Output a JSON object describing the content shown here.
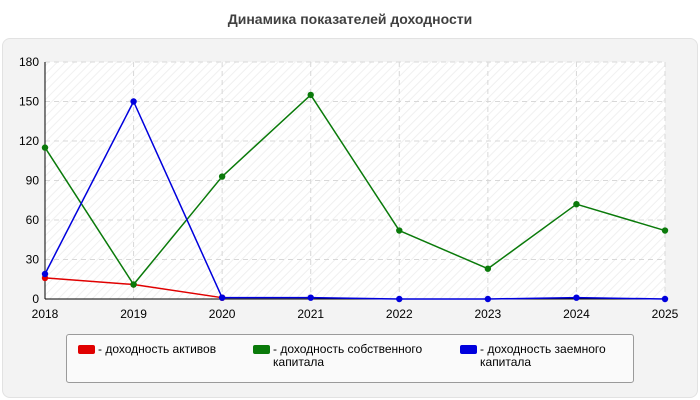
{
  "title": "Динамика показателей доходности",
  "chart_data": {
    "type": "line",
    "title": "Динамика показателей доходности",
    "x": [
      2018,
      2019,
      2020,
      2021,
      2022,
      2023,
      2024,
      2025
    ],
    "ylim": [
      0,
      180
    ],
    "yticks": [
      0,
      30,
      60,
      90,
      120,
      150,
      180
    ],
    "grid": true,
    "legend_position": "bottom",
    "series": [
      {
        "name": "- доходность активов",
        "color": "#e00000",
        "values": [
          16,
          11,
          1,
          null,
          null,
          null,
          null,
          null
        ]
      },
      {
        "name": "- доходность собственного капитала",
        "color": "#0a7a0a",
        "values": [
          115,
          11,
          93,
          155,
          52,
          23,
          72,
          52
        ]
      },
      {
        "name": "- доходность заемного капитала",
        "color": "#0000dd",
        "values": [
          19,
          150,
          1,
          1,
          0,
          0,
          1,
          0
        ]
      }
    ]
  },
  "legend": {
    "items": [
      {
        "label": "- доходность активов",
        "color": "#e00000"
      },
      {
        "label": "- доходность собственного капитала",
        "color": "#0a7a0a"
      },
      {
        "label": "- доходность заемного капитала",
        "color": "#0000dd"
      }
    ]
  }
}
